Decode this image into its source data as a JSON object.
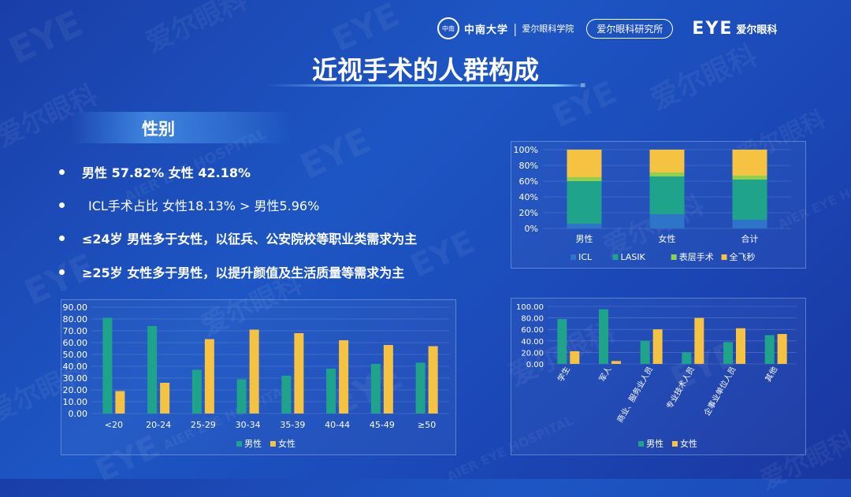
{
  "header": {
    "university_seal": "中南",
    "university_name": "中南大学",
    "hospital_name_script": "爱尔眼科学院",
    "institute_label": "爱尔眼科研究所",
    "brand_logo": "EYE",
    "brand_name": "爱尔眼科"
  },
  "title": "近视手术的人群构成",
  "title_mark": "≡",
  "section": {
    "label": "性别"
  },
  "bullets": [
    "男性 57.82% 女性 42.18%",
    "ICL手术占比  女性18.13% > 男性5.96%",
    "≤24岁 男性多于女性，以征兵、公安院校等职业类需求为主",
    "≥25岁 女性多于男性，以提升颜值及生活质量等需求为主"
  ],
  "colors": {
    "teal": "#1fa38a",
    "gold": "#f5c242",
    "light_green": "#8fd14f",
    "blue": "#2e74c9"
  },
  "watermark": {
    "brand": "EYE",
    "cn": "爱尔眼科",
    "en": "AIER EYE HOSPITAL"
  },
  "chart_data": [
    {
      "id": "stacked",
      "type": "bar",
      "stacked": true,
      "percent": true,
      "categories": [
        "男性",
        "女性",
        "合计"
      ],
      "series": [
        {
          "name": "ICL",
          "color": "#2e74c9",
          "values": [
            6,
            18,
            11
          ]
        },
        {
          "name": "LASIK",
          "color": "#1fa38a",
          "values": [
            54,
            48,
            51
          ]
        },
        {
          "name": "表层手术",
          "color": "#8fd14f",
          "values": [
            5,
            5,
            5
          ]
        },
        {
          "name": "全飞秒",
          "color": "#f5c242",
          "values": [
            35,
            29,
            33
          ]
        }
      ],
      "y_ticks": [
        "100%",
        "80%",
        "60%",
        "40%",
        "20%",
        "0%"
      ],
      "ylim": [
        0,
        100
      ],
      "grid": true,
      "legend": "bottom"
    },
    {
      "id": "age",
      "type": "bar",
      "categories": [
        "<20",
        "20-24",
        "25-29",
        "30-34",
        "35-39",
        "40-44",
        "45-49",
        "≥50"
      ],
      "series": [
        {
          "name": "男性",
          "color": "#1fa38a",
          "values": [
            81,
            74,
            37,
            29,
            32,
            38,
            42,
            43
          ]
        },
        {
          "name": "女性",
          "color": "#f5c242",
          "values": [
            19,
            26,
            63,
            71,
            68,
            62,
            58,
            57
          ]
        }
      ],
      "y_ticks": [
        "90.00",
        "80.00",
        "70.00",
        "60.00",
        "50.00",
        "40.00",
        "30.00",
        "20.00",
        "10.00",
        "0.00"
      ],
      "ylim": [
        0,
        90
      ],
      "grid": true,
      "legend": "bottom"
    },
    {
      "id": "occupation",
      "type": "bar",
      "categories": [
        "学生",
        "军人",
        "商业、服务业人员",
        "专业技术人员",
        "企事业单位人员",
        "其他"
      ],
      "series": [
        {
          "name": "男性",
          "color": "#1fa38a",
          "values": [
            78,
            95,
            40,
            20,
            38,
            50
          ]
        },
        {
          "name": "女性",
          "color": "#f5c242",
          "values": [
            22,
            5,
            60,
            80,
            62,
            52
          ]
        }
      ],
      "y_ticks": [
        "100.00",
        "80.00",
        "60.00",
        "40.00",
        "20.00",
        "0.00"
      ],
      "ylim": [
        0,
        100
      ],
      "grid": true,
      "legend": "bottom"
    }
  ]
}
